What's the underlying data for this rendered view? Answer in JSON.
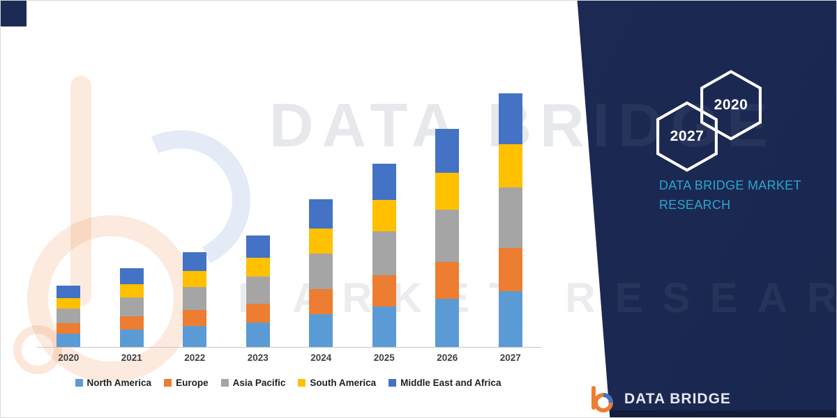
{
  "brand": {
    "watermark_line1": "DATA BRIDGE",
    "watermark_line2": "MARKET RESEARCH",
    "tagline": "DATA BRIDGE MARKET RESEARCH",
    "footer_name": "DATA BRIDGE"
  },
  "hexagons": [
    {
      "label": "2027"
    },
    {
      "label": "2020"
    }
  ],
  "colors": {
    "navy": "#1c2a54",
    "teal": "#2aa6cc",
    "north_america": "#5B9BD5",
    "europe": "#ED7D31",
    "asia_pacific": "#A5A5A5",
    "south_america": "#FFC000",
    "middle_east_africa": "#4472C4"
  },
  "chart_data": {
    "type": "bar",
    "stacked": true,
    "title": "",
    "xlabel": "",
    "ylabel": "",
    "grid": false,
    "legend_position": "bottom",
    "categories": [
      "2020",
      "2021",
      "2022",
      "2023",
      "2024",
      "2025",
      "2026",
      "2027"
    ],
    "series": [
      {
        "name": "North America",
        "color": "#5B9BD5",
        "values": [
          1.9,
          2.5,
          3.0,
          3.5,
          4.7,
          5.8,
          6.9,
          8.0
        ]
      },
      {
        "name": "Europe",
        "color": "#ED7D31",
        "values": [
          1.5,
          1.9,
          2.3,
          2.7,
          3.6,
          4.5,
          5.3,
          6.2
        ]
      },
      {
        "name": "Asia Pacific",
        "color": "#A5A5A5",
        "values": [
          2.1,
          2.7,
          3.3,
          3.9,
          5.1,
          6.3,
          7.5,
          8.7
        ]
      },
      {
        "name": "South America",
        "color": "#FFC000",
        "values": [
          1.5,
          1.9,
          2.3,
          2.7,
          3.6,
          4.5,
          5.3,
          6.2
        ]
      },
      {
        "name": "Middle East and Africa",
        "color": "#4472C4",
        "values": [
          1.8,
          2.3,
          2.7,
          3.2,
          4.2,
          5.2,
          6.3,
          7.3
        ]
      }
    ]
  }
}
